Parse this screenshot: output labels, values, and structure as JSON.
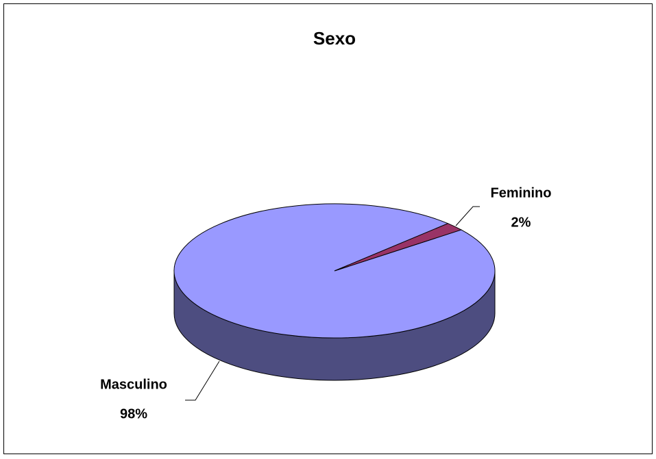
{
  "chart_data": {
    "type": "pie",
    "title": "Sexo",
    "categories": [
      "Masculino",
      "Feminino"
    ],
    "values": [
      98,
      2
    ],
    "value_labels": [
      "98%",
      "2%"
    ],
    "colors": [
      "#9999ff",
      "#993366"
    ]
  }
}
